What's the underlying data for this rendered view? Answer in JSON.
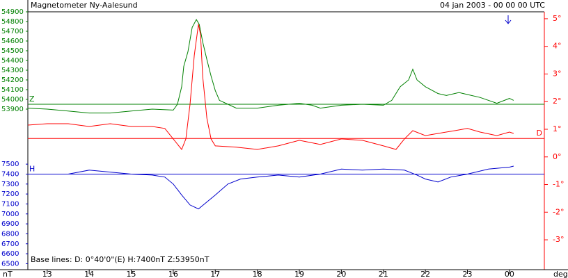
{
  "chart_data": {
    "type": "line",
    "title": "Magnetometer Ny-Aalesund",
    "subtitle": "04 jan 2003 - 00 00 00 UTC",
    "x_unit": "deg",
    "y_unit": "nT",
    "baseline_text": "Base lines:  D: 0°40'0\"(E)  H:7400nT  Z:53950nT",
    "xlim": [
      12.54,
      24.83
    ],
    "xticks": [
      13,
      14,
      15,
      16,
      17,
      18,
      19,
      20,
      21,
      22,
      23,
      {
        "value": 24,
        "label": "00"
      }
    ],
    "series": [
      {
        "name": "Z",
        "color": "#008000",
        "side": "left",
        "baseline": 53950,
        "ylim": [
          52250,
          54900
        ],
        "yticks": [
          53900,
          54000,
          54100,
          54200,
          54300,
          54400,
          54500,
          54600,
          54700,
          54800,
          54900
        ],
        "x": [
          12.54,
          13,
          13.5,
          14,
          14.5,
          15,
          15.5,
          16,
          16.1,
          16.2,
          16.25,
          16.35,
          16.45,
          16.55,
          16.62,
          16.7,
          16.8,
          16.9,
          17.0,
          17.1,
          17.3,
          17.5,
          18,
          18.5,
          19,
          19.3,
          19.5,
          20,
          20.5,
          21,
          21.2,
          21.4,
          21.6,
          21.7,
          21.8,
          22,
          22.3,
          22.5,
          22.8,
          23,
          23.3,
          23.7,
          24,
          24.1
        ],
        "values": [
          53910,
          53900,
          53880,
          53860,
          53860,
          53880,
          53900,
          53890,
          53950,
          54130,
          54340,
          54490,
          54740,
          54820,
          54770,
          54590,
          54410,
          54240,
          54090,
          53990,
          53950,
          53910,
          53910,
          53940,
          53960,
          53940,
          53910,
          53940,
          53950,
          53940,
          53990,
          54130,
          54200,
          54310,
          54200,
          54130,
          54060,
          54040,
          54070,
          54050,
          54020,
          53960,
          54010,
          53990
        ]
      },
      {
        "name": "H",
        "color": "#0000cc",
        "side": "left",
        "baseline": 7400,
        "ylim": [
          6440,
          9030
        ],
        "yticks": [
          6500,
          6600,
          6700,
          6800,
          6900,
          7000,
          7100,
          7200,
          7300,
          7400,
          7500
        ],
        "x": [
          12.54,
          13.5,
          14,
          14.5,
          15,
          15.5,
          15.8,
          16,
          16.2,
          16.4,
          16.6,
          16.8,
          17,
          17.3,
          17.6,
          18,
          18.5,
          19,
          19.5,
          20,
          20.5,
          21,
          21.5,
          21.8,
          22,
          22.3,
          22.6,
          23,
          23.5,
          24,
          24.1
        ],
        "values": [
          7400,
          7400,
          7440,
          7420,
          7400,
          7390,
          7370,
          7300,
          7190,
          7090,
          7050,
          7120,
          7190,
          7300,
          7350,
          7370,
          7390,
          7370,
          7400,
          7450,
          7440,
          7450,
          7440,
          7390,
          7350,
          7320,
          7370,
          7400,
          7450,
          7470,
          7480
        ]
      },
      {
        "name": "D",
        "color": "#ff0000",
        "side": "right",
        "baseline": 0.667,
        "ylim": [
          -4.08,
          5.25
        ],
        "yticks": [
          {
            "value": -3,
            "label": "-3°"
          },
          {
            "value": -2,
            "label": "-2°"
          },
          {
            "value": -1,
            "label": "-1°"
          },
          {
            "value": 0,
            "label": "0°"
          },
          {
            "value": 1,
            "label": "1°"
          },
          {
            "value": 2,
            "label": "2°"
          },
          {
            "value": 3,
            "label": "3°"
          },
          {
            "value": 4,
            "label": "4°"
          },
          {
            "value": 5,
            "label": "5°"
          }
        ],
        "x": [
          12.54,
          13,
          13.5,
          14,
          14.5,
          15,
          15.5,
          15.8,
          16,
          16.2,
          16.3,
          16.4,
          16.5,
          16.6,
          16.65,
          16.7,
          16.8,
          16.9,
          17.0,
          17.5,
          18,
          18.5,
          19,
          19.5,
          20,
          20.5,
          21,
          21.3,
          21.5,
          21.7,
          22,
          22.3,
          22.7,
          23,
          23.3,
          23.7,
          24,
          24.1
        ],
        "values": [
          1.15,
          1.2,
          1.2,
          1.1,
          1.2,
          1.1,
          1.1,
          1.03,
          0.65,
          0.27,
          0.65,
          1.9,
          3.67,
          4.8,
          4.42,
          2.91,
          1.4,
          0.65,
          0.4,
          0.35,
          0.27,
          0.4,
          0.6,
          0.45,
          0.65,
          0.6,
          0.4,
          0.27,
          0.65,
          0.95,
          0.77,
          0.85,
          0.95,
          1.03,
          0.9,
          0.77,
          0.9,
          0.85
        ]
      }
    ]
  }
}
